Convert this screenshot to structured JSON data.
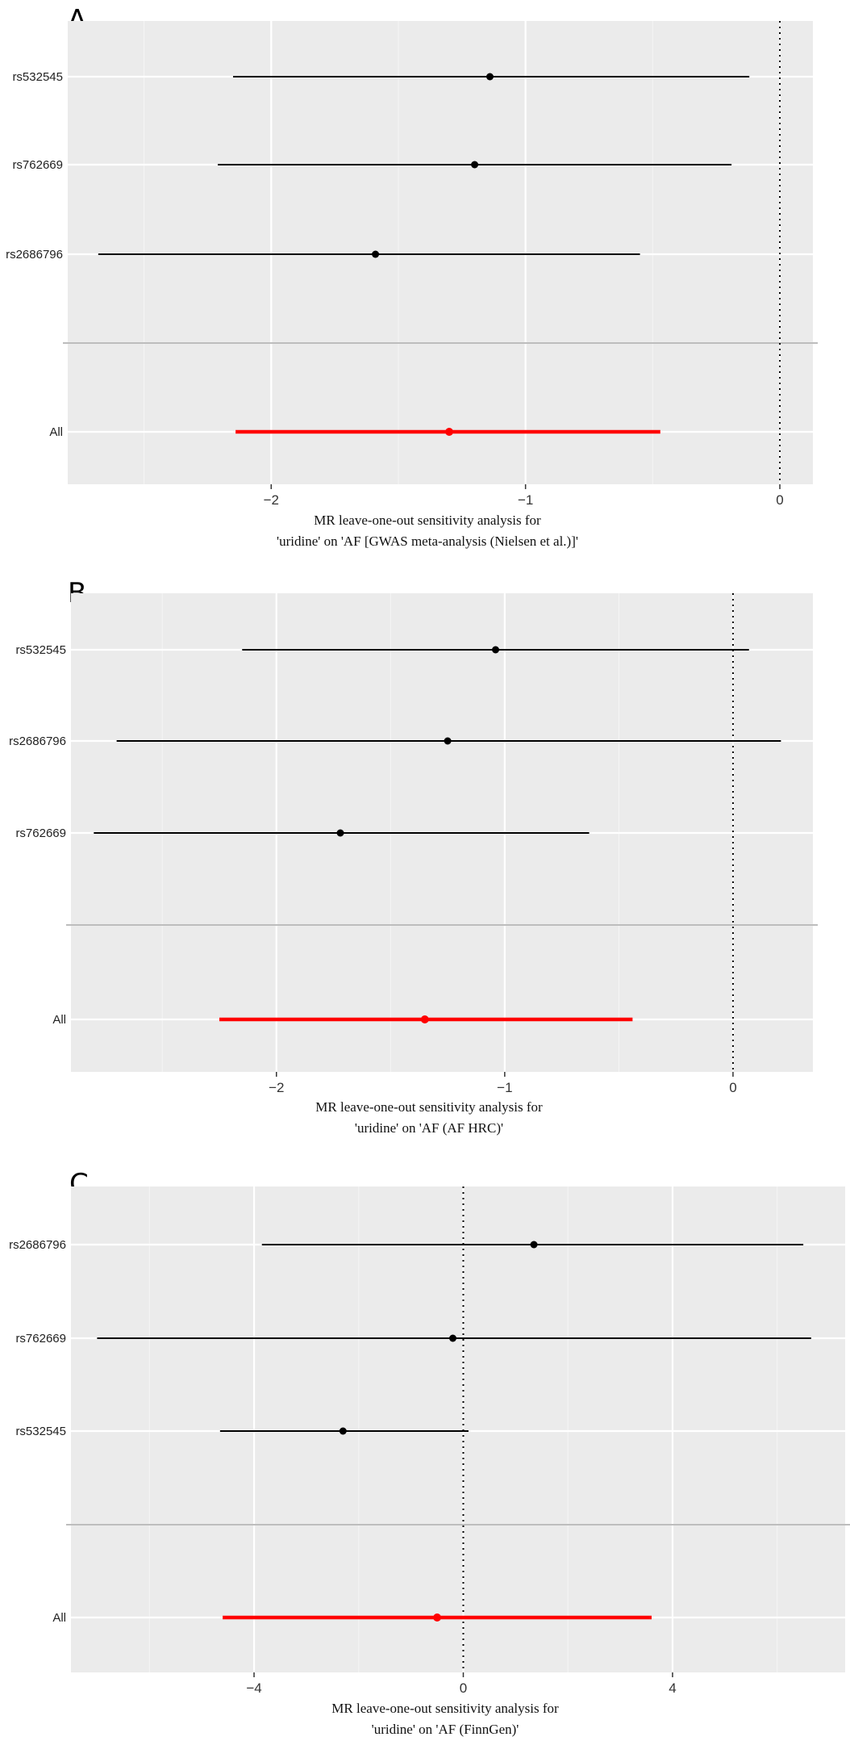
{
  "chart_data": [
    {
      "type": "forest",
      "panel": "A",
      "xlabel": [
        "MR leave-one-out sensitivity analysis for",
        "'uridine' on 'AF [GWAS meta-analysis (Nielsen et al.)]'"
      ],
      "xlim": [
        -2.8,
        0.13
      ],
      "xticks": [
        -2,
        -1,
        0
      ],
      "xtick_labels": [
        "−2",
        "−1",
        "0"
      ],
      "minor_gridlines": [
        -2.5,
        -1.5,
        -0.5
      ],
      "reference_line": 0,
      "rows": [
        {
          "label": "rs532545",
          "estimate": -1.14,
          "lower": -2.15,
          "upper": -0.12
        },
        {
          "label": "rs762669",
          "estimate": -1.2,
          "lower": -2.21,
          "upper": -0.19
        },
        {
          "label": "rs2686796",
          "estimate": -1.59,
          "lower": -2.68,
          "upper": -0.55
        },
        {
          "label": "All",
          "estimate": -1.3,
          "lower": -2.14,
          "upper": -0.47,
          "overall": true
        }
      ],
      "colors": {
        "point": "#000000",
        "overall": "#ff0000",
        "panel_bg": "#ebebeb",
        "grid": "#ffffff"
      }
    },
    {
      "type": "forest",
      "panel": "B",
      "xlabel": [
        "MR leave-one-out sensitivity analysis for",
        "'uridine' on 'AF (AF HRC)'"
      ],
      "xlim": [
        -2.9,
        0.35
      ],
      "xticks": [
        -2,
        -1,
        0
      ],
      "xtick_labels": [
        "−2",
        "−1",
        "0"
      ],
      "minor_gridlines": [
        -2.5,
        -1.5,
        -0.5
      ],
      "reference_line": 0,
      "rows": [
        {
          "label": "rs532545",
          "estimate": -1.04,
          "lower": -2.15,
          "upper": 0.07
        },
        {
          "label": "rs2686796",
          "estimate": -1.25,
          "lower": -2.7,
          "upper": 0.21
        },
        {
          "label": "rs762669",
          "estimate": -1.72,
          "lower": -2.8,
          "upper": -0.63
        },
        {
          "label": "All",
          "estimate": -1.35,
          "lower": -2.25,
          "upper": -0.44,
          "overall": true
        }
      ],
      "colors": {
        "point": "#000000",
        "overall": "#ff0000",
        "panel_bg": "#ebebeb",
        "grid": "#ffffff"
      }
    },
    {
      "type": "forest",
      "panel": "C",
      "xlabel": [
        "MR leave-one-out sensitivity analysis for",
        "'uridine' on 'AF (FinnGen)'"
      ],
      "xlim": [
        -7.5,
        7.3
      ],
      "xticks": [
        -4,
        0,
        4
      ],
      "xtick_labels": [
        "−4",
        "0",
        "4"
      ],
      "minor_gridlines": [
        -6,
        -2,
        2,
        6
      ],
      "reference_line": 0,
      "rows": [
        {
          "label": "rs2686796",
          "estimate": 1.35,
          "lower": -3.85,
          "upper": 6.5
        },
        {
          "label": "rs762669",
          "estimate": -0.2,
          "lower": -7.0,
          "upper": 6.65
        },
        {
          "label": "rs532545",
          "estimate": -2.3,
          "lower": -4.65,
          "upper": 0.1
        },
        {
          "label": "All",
          "estimate": -0.5,
          "lower": -4.6,
          "upper": 3.6,
          "overall": true
        }
      ],
      "colors": {
        "point": "#000000",
        "overall": "#ff0000",
        "panel_bg": "#ebebeb",
        "grid": "#ffffff"
      }
    }
  ]
}
